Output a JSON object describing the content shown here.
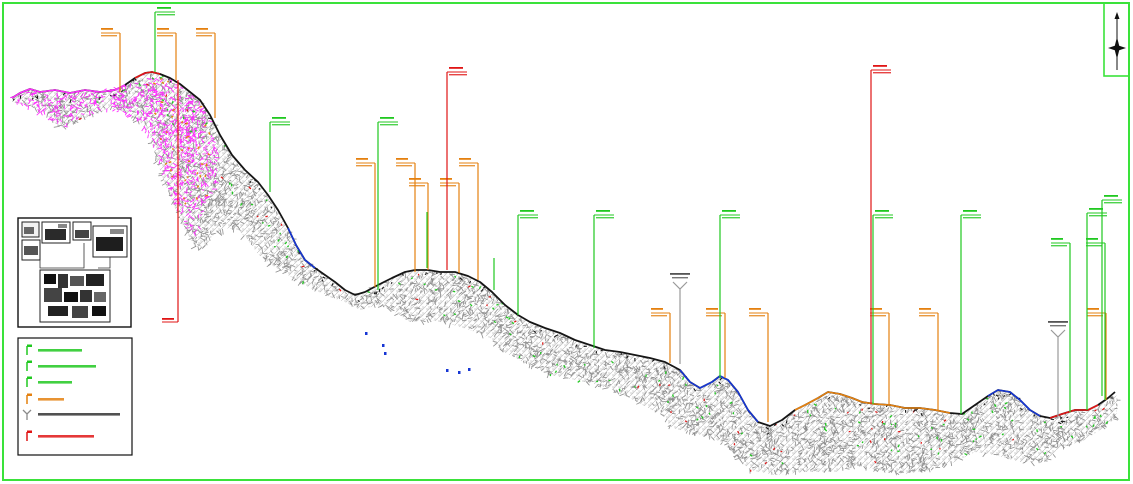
{
  "icons": {
    "north_arrow": "north-arrow-icon",
    "key_map": "key-map-icon"
  },
  "colors": {
    "frame": "#3ae23a",
    "terrain_mesh": "#8e8e8e",
    "terrain_mesh_light": "#c2c2c2",
    "ridge": "#161616",
    "magenta": "#ff30ff",
    "orange": "#e4800f",
    "green": "#20c820",
    "red": "#e01515",
    "gray_marker": "#9a9a9a",
    "blue": "#1636d4",
    "inset_ink": "#1a1a1a"
  },
  "legend": {
    "entries": [
      {
        "symbol": "flag-icon",
        "symbol_color": "#20c820",
        "text_color": "#20c820"
      },
      {
        "symbol": "flag-icon",
        "symbol_color": "#20c820",
        "text_color": "#20c820"
      },
      {
        "symbol": "flag-icon",
        "symbol_color": "#20c820",
        "text_color": "#20c820"
      },
      {
        "symbol": "flag-icon",
        "symbol_color": "#e4800f",
        "text_color": "#e4800f"
      },
      {
        "symbol": "y-marker-icon",
        "symbol_color": "#8a8a8a",
        "text_color": "#333333"
      },
      {
        "symbol": "flag-icon",
        "symbol_color": "#e01515",
        "text_color": "#e01515"
      }
    ]
  }
}
